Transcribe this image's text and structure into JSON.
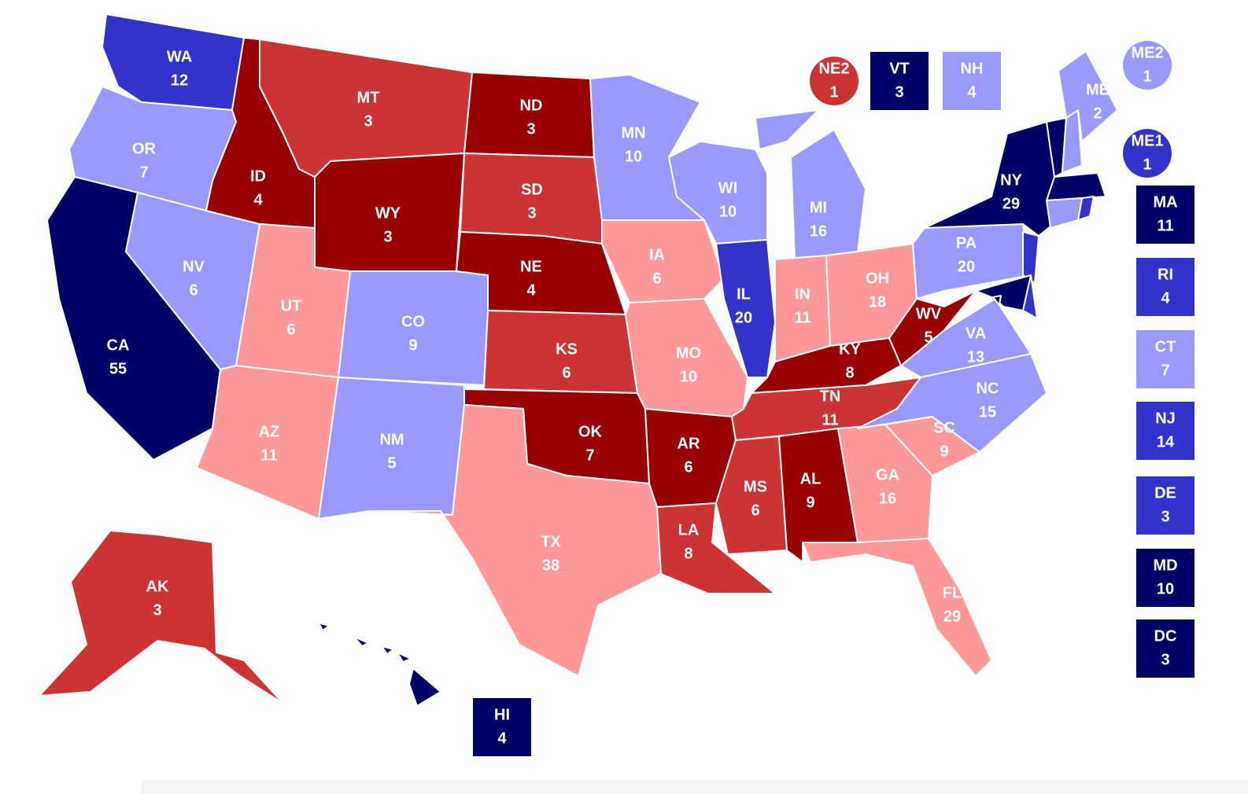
{
  "states": [
    {
      "abbr": "WA",
      "votes": 12,
      "color": "#3333cc"
    },
    {
      "abbr": "OR",
      "votes": 7,
      "color": "#9999ff"
    },
    {
      "abbr": "CA",
      "votes": 55,
      "color": "#000066"
    },
    {
      "abbr": "NV",
      "votes": 6,
      "color": "#9999ff"
    },
    {
      "abbr": "ID",
      "votes": 4,
      "color": "#990000"
    },
    {
      "abbr": "MT",
      "votes": 3,
      "color": "#cc3333"
    },
    {
      "abbr": "WY",
      "votes": 3,
      "color": "#990000"
    },
    {
      "abbr": "UT",
      "votes": 6,
      "color": "#ff9999"
    },
    {
      "abbr": "CO",
      "votes": 9,
      "color": "#9999ff"
    },
    {
      "abbr": "AZ",
      "votes": 11,
      "color": "#ff9999"
    },
    {
      "abbr": "NM",
      "votes": 5,
      "color": "#9999ff"
    },
    {
      "abbr": "ND",
      "votes": 3,
      "color": "#990000"
    },
    {
      "abbr": "SD",
      "votes": 3,
      "color": "#cc3333"
    },
    {
      "abbr": "NE",
      "votes": 4,
      "color": "#990000"
    },
    {
      "abbr": "KS",
      "votes": 6,
      "color": "#cc3333"
    },
    {
      "abbr": "OK",
      "votes": 7,
      "color": "#990000"
    },
    {
      "abbr": "TX",
      "votes": 38,
      "color": "#ff9999"
    },
    {
      "abbr": "MN",
      "votes": 10,
      "color": "#9999ff"
    },
    {
      "abbr": "IA",
      "votes": 6,
      "color": "#ff9999"
    },
    {
      "abbr": "MO",
      "votes": 10,
      "color": "#ff9999"
    },
    {
      "abbr": "AR",
      "votes": 6,
      "color": "#990000"
    },
    {
      "abbr": "LA",
      "votes": 8,
      "color": "#cc3333"
    },
    {
      "abbr": "WI",
      "votes": 10,
      "color": "#9999ff"
    },
    {
      "abbr": "IL",
      "votes": 20,
      "color": "#3333cc"
    },
    {
      "abbr": "MI",
      "votes": 16,
      "color": "#9999ff"
    },
    {
      "abbr": "IN",
      "votes": 11,
      "color": "#ff9999"
    },
    {
      "abbr": "OH",
      "votes": 18,
      "color": "#ff9999"
    },
    {
      "abbr": "KY",
      "votes": 8,
      "color": "#990000"
    },
    {
      "abbr": "TN",
      "votes": 11,
      "color": "#cc3333"
    },
    {
      "abbr": "MS",
      "votes": 6,
      "color": "#cc3333"
    },
    {
      "abbr": "AL",
      "votes": 9,
      "color": "#990000"
    },
    {
      "abbr": "GA",
      "votes": 16,
      "color": "#ff9999"
    },
    {
      "abbr": "FL",
      "votes": 29,
      "color": "#ff9999"
    },
    {
      "abbr": "SC",
      "votes": 9,
      "color": "#ff9999"
    },
    {
      "abbr": "NC",
      "votes": 15,
      "color": "#9999ff"
    },
    {
      "abbr": "VA",
      "votes": 13,
      "color": "#9999ff"
    },
    {
      "abbr": "WV",
      "votes": 5,
      "color": "#990000"
    },
    {
      "abbr": "PA",
      "votes": 20,
      "color": "#9999ff"
    },
    {
      "abbr": "NY",
      "votes": 29,
      "color": "#000066"
    },
    {
      "abbr": "VT",
      "votes": 3,
      "color": "#000066"
    },
    {
      "abbr": "NH",
      "votes": 4,
      "color": "#9999ff"
    },
    {
      "abbr": "ME",
      "votes": 2,
      "color": "#9999ff"
    },
    {
      "abbr": "MA",
      "votes": 11,
      "color": "#000066"
    },
    {
      "abbr": "RI",
      "votes": 4,
      "color": "#3333cc"
    },
    {
      "abbr": "CT",
      "votes": 7,
      "color": "#9999ff"
    },
    {
      "abbr": "NJ",
      "votes": 14,
      "color": "#3333cc"
    },
    {
      "abbr": "DE",
      "votes": 3,
      "color": "#3333cc"
    },
    {
      "abbr": "MD",
      "votes": 10,
      "color": "#000066"
    },
    {
      "abbr": "DC",
      "votes": 3,
      "color": "#000066"
    },
    {
      "abbr": "AK",
      "votes": 3,
      "color": "#cc3333"
    },
    {
      "abbr": "HI",
      "votes": 4,
      "color": "#000066"
    },
    {
      "abbr": "NE2",
      "votes": 1,
      "color": "#cc3333"
    },
    {
      "abbr": "ME2",
      "votes": 1,
      "color": "#9999ff"
    },
    {
      "abbr": "ME1",
      "votes": 1,
      "color": "#3333cc"
    }
  ]
}
